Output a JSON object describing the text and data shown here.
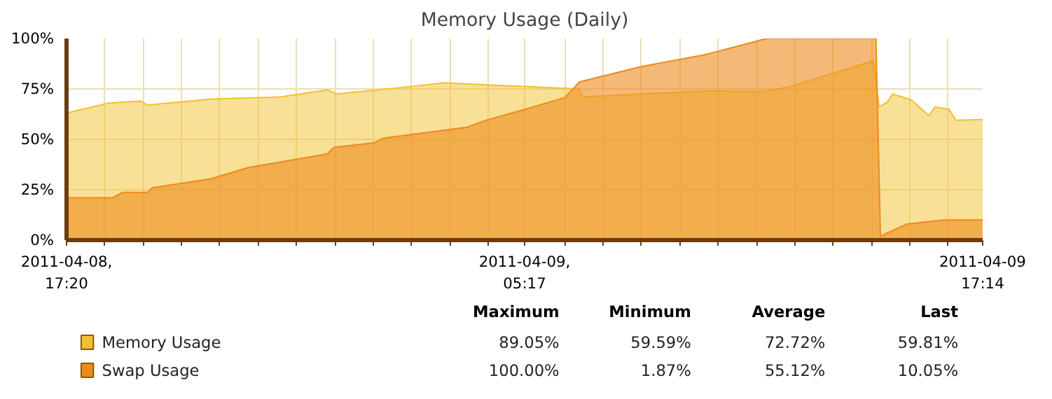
{
  "chart_data": {
    "type": "area",
    "title": "Memory Usage (Daily)",
    "xlim": [
      "2011-04-08T17:20",
      "2011-04-09T17:14"
    ],
    "ylim": [
      0,
      100
    ],
    "xticks": [
      {
        "value": "2011-04-08T17:20",
        "label": "2011-04-08,\n17:20"
      },
      {
        "value": "2011-04-08T18:20",
        "label": null
      },
      {
        "value": "2011-04-08T19:20",
        "label": null
      },
      {
        "value": "2011-04-08T20:20",
        "label": null
      },
      {
        "value": "2011-04-08T21:20",
        "label": null
      },
      {
        "value": "2011-04-08T22:20",
        "label": null
      },
      {
        "value": "2011-04-08T23:20",
        "label": null
      },
      {
        "value": "2011-04-09T00:20",
        "label": null
      },
      {
        "value": "2011-04-09T01:20",
        "label": null
      },
      {
        "value": "2011-04-09T02:20",
        "label": null
      },
      {
        "value": "2011-04-09T03:20",
        "label": null
      },
      {
        "value": "2011-04-09T04:20",
        "label": null
      },
      {
        "value": "2011-04-09T05:17",
        "label": "2011-04-09,\n05:17"
      },
      {
        "value": "2011-04-09T06:20",
        "label": null
      },
      {
        "value": "2011-04-09T07:20",
        "label": null
      },
      {
        "value": "2011-04-09T08:20",
        "label": null
      },
      {
        "value": "2011-04-09T09:20",
        "label": null
      },
      {
        "value": "2011-04-09T10:20",
        "label": null
      },
      {
        "value": "2011-04-09T11:20",
        "label": null
      },
      {
        "value": "2011-04-09T12:20",
        "label": null
      },
      {
        "value": "2011-04-09T13:20",
        "label": null
      },
      {
        "value": "2011-04-09T14:20",
        "label": null
      },
      {
        "value": "2011-04-09T15:20",
        "label": null
      },
      {
        "value": "2011-04-09T16:20",
        "label": null
      },
      {
        "value": "2011-04-09T17:14",
        "label": "2011-04-09\n17:14"
      }
    ],
    "yticks": [
      {
        "value": 0,
        "label": "0%"
      },
      {
        "value": 25,
        "label": "25%"
      },
      {
        "value": 50,
        "label": "50%"
      },
      {
        "value": 75,
        "label": "75%"
      },
      {
        "value": 100,
        "label": "100%"
      }
    ],
    "grid": true,
    "legend": "bottom",
    "series": [
      {
        "name": "Memory Usage",
        "color": "#f2c12e",
        "x": [
          "2011-04-08T17:20",
          "2011-04-08T18:26",
          "2011-04-08T19:16",
          "2011-04-08T19:27",
          "2011-04-08T21:06",
          "2011-04-08T22:55",
          "2011-04-09T00:08",
          "2011-04-09T00:23",
          "2011-04-09T02:13",
          "2011-04-09T03:12",
          "2011-04-09T04:17",
          "2011-04-09T05:30",
          "2011-04-09T06:43",
          "2011-04-09T06:47",
          "2011-04-09T08:19",
          "2011-04-09T10:00",
          "2011-04-09T11:28",
          "2011-04-09T12:11",
          "2011-04-09T14:23",
          "2011-04-09T14:32",
          "2011-04-09T14:45",
          "2011-04-09T14:53",
          "2011-04-09T15:22",
          "2011-04-09T15:50",
          "2011-04-09T15:59",
          "2011-04-09T16:21",
          "2011-04-09T16:32",
          "2011-04-09T17:14"
        ],
        "values": [
          63,
          68,
          69,
          67,
          70,
          71,
          74.5,
          72.5,
          76,
          78,
          77,
          76,
          75,
          71,
          72.5,
          74,
          73.7,
          76,
          89,
          66,
          68.5,
          72.5,
          69.6,
          61.7,
          66,
          65,
          59.5,
          59.8
        ]
      },
      {
        "name": "Swap Usage",
        "color": "#ee8a1c",
        "x": [
          "2011-04-08T17:20",
          "2011-04-08T18:32",
          "2011-04-08T18:48",
          "2011-04-08T19:27",
          "2011-04-08T19:34",
          "2011-04-08T21:06",
          "2011-04-08T22:05",
          "2011-04-09T00:08",
          "2011-04-09T00:19",
          "2011-04-09T01:22",
          "2011-04-09T01:35",
          "2011-04-09T03:47",
          "2011-04-09T04:17",
          "2011-04-09T05:08",
          "2011-04-09T05:30",
          "2011-04-09T06:20",
          "2011-04-09T06:43",
          "2011-04-09T08:19",
          "2011-04-09T10:00",
          "2011-04-09T11:36",
          "2011-04-09T14:27",
          "2011-04-09T14:34",
          "2011-04-09T14:45",
          "2011-04-09T15:16",
          "2011-04-09T16:13",
          "2011-04-09T17:14"
        ],
        "values": [
          21,
          21,
          23.7,
          23.7,
          26,
          30.4,
          36,
          42.7,
          46,
          48.3,
          50.5,
          56,
          59.5,
          64,
          66,
          70.7,
          78.5,
          86,
          92,
          100,
          100,
          1.9,
          3.6,
          8,
          10,
          10
        ]
      }
    ],
    "annotations": [
      "Maximum",
      "Minimum",
      "Average",
      "Last",
      "89.05%",
      "59.59%",
      "72.72%",
      "59.81%",
      "100.00%",
      "1.87%",
      "55.12%",
      "10.05%"
    ]
  }
}
